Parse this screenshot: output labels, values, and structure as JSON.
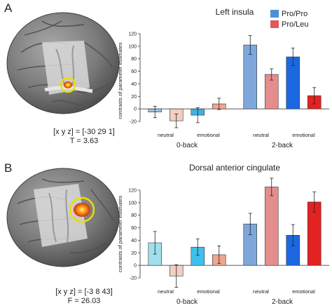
{
  "panel_a": {
    "letter": "A",
    "coords_line": "[x y z] = [-30 29 1]",
    "stat_line": "T = 3.63"
  },
  "panel_b": {
    "letter": "B",
    "coords_line": "[x y z] = [-3 8 43]",
    "stat_line": "F = 26.03"
  },
  "legend": {
    "items": [
      {
        "label": "Pro/Pro",
        "color": "#4a90d9"
      },
      {
        "label": "Pro/Leu",
        "color": "#e05a5a"
      }
    ]
  },
  "chart_data": [
    {
      "type": "bar",
      "title": "Left insula",
      "ylabel": "contrasts of parameter estimates",
      "ylim": [
        -30,
        120
      ],
      "yticks": [
        -20,
        0,
        20,
        40,
        60,
        80,
        100,
        120
      ],
      "groups": [
        {
          "label": "0-back",
          "conditions": [
            "neutral",
            "emotional"
          ]
        },
        {
          "label": "2-back",
          "conditions": [
            "neutral",
            "emotional"
          ]
        }
      ],
      "bars": [
        {
          "group": "0-back",
          "condition": "neutral",
          "genotype": "Pro/Pro",
          "value": -5,
          "error": 9,
          "color": "#9ec3e2"
        },
        {
          "group": "0-back",
          "condition": "neutral",
          "genotype": "Pro/Leu",
          "value": -19,
          "error": 11,
          "color": "#f1cfc3"
        },
        {
          "group": "0-back",
          "condition": "emotional",
          "genotype": "Pro/Pro",
          "value": -10,
          "error": 12,
          "color": "#3fb0e5"
        },
        {
          "group": "0-back",
          "condition": "emotional",
          "genotype": "Pro/Leu",
          "value": 8,
          "error": 9,
          "color": "#f0a58e"
        },
        {
          "group": "2-back",
          "condition": "neutral",
          "genotype": "Pro/Pro",
          "value": 102,
          "error": 15,
          "color": "#7ea7dc"
        },
        {
          "group": "2-back",
          "condition": "neutral",
          "genotype": "Pro/Leu",
          "value": 55,
          "error": 9,
          "color": "#e58d8d"
        },
        {
          "group": "2-back",
          "condition": "emotional",
          "genotype": "Pro/Pro",
          "value": 83,
          "error": 14,
          "color": "#1b68e0"
        },
        {
          "group": "2-back",
          "condition": "emotional",
          "genotype": "Pro/Leu",
          "value": 21,
          "error": 13,
          "color": "#e32222"
        }
      ]
    },
    {
      "type": "bar",
      "title": "Dorsal anterior cingulate",
      "ylabel": "contrasts of parameter estimates",
      "ylim": [
        -30,
        130
      ],
      "yticks": [
        -20,
        0,
        20,
        40,
        60,
        80,
        100,
        120
      ],
      "groups": [
        {
          "label": "0-back",
          "conditions": [
            "neutral",
            "emotional"
          ]
        },
        {
          "label": "2-back",
          "conditions": [
            "neutral",
            "emotional"
          ]
        }
      ],
      "bars": [
        {
          "group": "0-back",
          "condition": "neutral",
          "genotype": "Pro/Pro",
          "value": 36,
          "error": 18,
          "color": "#9fe0ec"
        },
        {
          "group": "0-back",
          "condition": "neutral",
          "genotype": "Pro/Leu",
          "value": -17,
          "error": 18,
          "color": "#f1cfc3"
        },
        {
          "group": "0-back",
          "condition": "emotional",
          "genotype": "Pro/Pro",
          "value": 29,
          "error": 13,
          "color": "#3fc0ee"
        },
        {
          "group": "0-back",
          "condition": "emotional",
          "genotype": "Pro/Leu",
          "value": 17,
          "error": 14,
          "color": "#f0a58e"
        },
        {
          "group": "2-back",
          "condition": "neutral",
          "genotype": "Pro/Pro",
          "value": 66,
          "error": 17,
          "color": "#7ea7dc"
        },
        {
          "group": "2-back",
          "condition": "neutral",
          "genotype": "Pro/Leu",
          "value": 125,
          "error": 14,
          "color": "#e58d8d"
        },
        {
          "group": "2-back",
          "condition": "emotional",
          "genotype": "Pro/Pro",
          "value": 48,
          "error": 17,
          "color": "#1b68e0"
        },
        {
          "group": "2-back",
          "condition": "emotional",
          "genotype": "Pro/Leu",
          "value": 101,
          "error": 16,
          "color": "#e32222"
        }
      ]
    }
  ]
}
